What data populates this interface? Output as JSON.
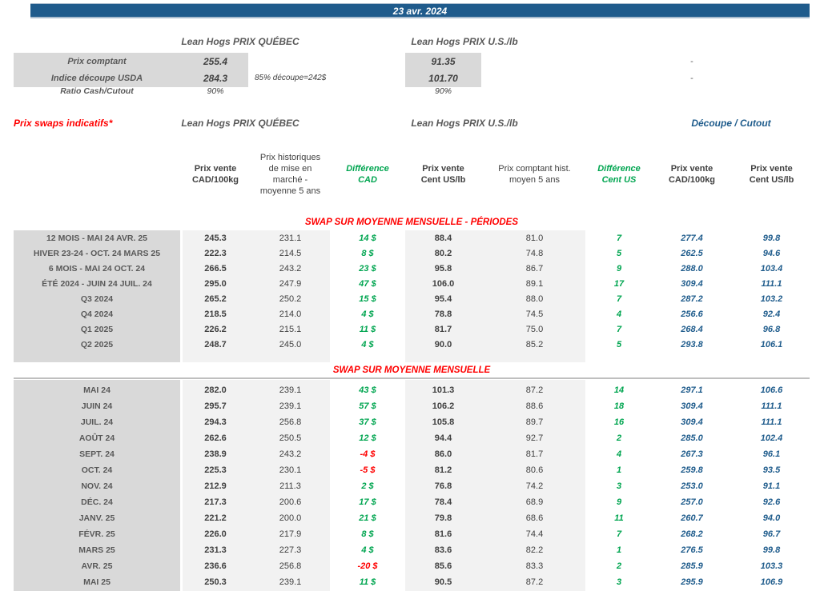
{
  "banner": {
    "date": "23 avr. 2024"
  },
  "colors": {
    "banner_blue": "#1F5B8C",
    "accent_red": "#FF0000",
    "accent_green": "#00A550",
    "cutout_blue": "#1F5C8C",
    "label_row_bg": "#D9D9D9",
    "value_col_bg": "#F2F2F2",
    "text_dark": "#404040",
    "text_gray": "#595959"
  },
  "spot": {
    "qc_header": "Lean Hogs PRIX QUÉBEC",
    "us_header": "Lean Hogs PRIX U.S./lb",
    "rows": [
      {
        "label": "Prix comptant",
        "qc": "255.4",
        "note": "",
        "us": "91.35",
        "right": "-"
      },
      {
        "label": "Indice découpe USDA",
        "qc": "284.3",
        "note": "85% découpe=242$",
        "us": "101.70",
        "right": "-"
      },
      {
        "label": "Ratio Cash/Cutout",
        "qc": "90%",
        "note": "",
        "us": "90%",
        "right": ""
      }
    ]
  },
  "swaps": {
    "title": "Prix swaps indicatifs*",
    "qc_header": "Lean Hogs PRIX QUÉBEC",
    "us_header": "Lean Hogs PRIX U.S./lb",
    "cutout_header": "Découpe / Cutout",
    "column_headers": [
      "Prix vente\nCAD/100kg",
      "Prix historiques\nde mise en\nmarché -\nmoyenne 5 ans",
      "Différence\nCAD",
      "Prix vente\nCent US/lb",
      "Prix comptant hist.\nmoyen 5 ans",
      "Différence\nCent US",
      "Prix vente\nCAD/100kg",
      "Prix vente\nCent US/lb"
    ],
    "sections": [
      {
        "title": "SWAP SUR MOYENNE MENSUELLE - PÉRIODES",
        "rows": [
          {
            "label": "12 MOIS - MAI 24 AVR. 25",
            "cells": [
              "245.3",
              "231.1",
              "14 $",
              "88.4",
              "81.0",
              "7",
              "277.4",
              "99.8"
            ]
          },
          {
            "label": "HIVER 23-24 -  OCT. 24 MARS 25",
            "cells": [
              "222.3",
              "214.5",
              "8 $",
              "80.2",
              "74.8",
              "5",
              "262.5",
              "94.6"
            ]
          },
          {
            "label": "6 MOIS -  MAI 24 OCT. 24",
            "cells": [
              "266.5",
              "243.2",
              "23 $",
              "95.8",
              "86.7",
              "9",
              "288.0",
              "103.4"
            ]
          },
          {
            "label": "ÉTÉ 2024 - JUIN 24 JUIL. 24",
            "cells": [
              "295.0",
              "247.9",
              "47 $",
              "106.0",
              "89.1",
              "17",
              "309.4",
              "111.1"
            ]
          },
          {
            "label": "Q3 2024",
            "cells": [
              "265.2",
              "250.2",
              "15 $",
              "95.4",
              "88.0",
              "7",
              "287.2",
              "103.2"
            ]
          },
          {
            "label": "Q4 2024",
            "cells": [
              "218.5",
              "214.0",
              "4 $",
              "78.8",
              "74.5",
              "4",
              "256.6",
              "92.4"
            ]
          },
          {
            "label": "Q1 2025",
            "cells": [
              "226.2",
              "215.1",
              "11 $",
              "81.7",
              "75.0",
              "7",
              "268.4",
              "96.8"
            ]
          },
          {
            "label": "Q2 2025",
            "cells": [
              "248.7",
              "245.0",
              "4 $",
              "90.0",
              "85.2",
              "5",
              "293.8",
              "106.1"
            ]
          }
        ]
      },
      {
        "title": "SWAP SUR MOYENNE MENSUELLE",
        "rows": [
          {
            "label": "MAI 24",
            "cells": [
              "282.0",
              "239.1",
              "43 $",
              "101.3",
              "87.2",
              "14",
              "297.1",
              "106.6"
            ]
          },
          {
            "label": "JUIN 24",
            "cells": [
              "295.7",
              "239.1",
              "57 $",
              "106.2",
              "88.6",
              "18",
              "309.4",
              "111.1"
            ]
          },
          {
            "label": "JUIL. 24",
            "cells": [
              "294.3",
              "256.8",
              "37 $",
              "105.8",
              "89.7",
              "16",
              "309.4",
              "111.1"
            ]
          },
          {
            "label": "AOÛT 24",
            "cells": [
              "262.6",
              "250.5",
              "12 $",
              "94.4",
              "92.7",
              "2",
              "285.0",
              "102.4"
            ]
          },
          {
            "label": "SEPT. 24",
            "cells": [
              "238.9",
              "243.2",
              "-4 $",
              "86.0",
              "81.7",
              "4",
              "267.3",
              "96.1"
            ]
          },
          {
            "label": "OCT. 24",
            "cells": [
              "225.3",
              "230.1",
              "-5 $",
              "81.2",
              "80.6",
              "1",
              "259.8",
              "93.5"
            ]
          },
          {
            "label": "NOV. 24",
            "cells": [
              "212.9",
              "211.3",
              "2 $",
              "76.8",
              "74.2",
              "3",
              "253.0",
              "91.1"
            ]
          },
          {
            "label": "DÉC. 24",
            "cells": [
              "217.3",
              "200.6",
              "17 $",
              "78.4",
              "68.9",
              "9",
              "257.0",
              "92.6"
            ]
          },
          {
            "label": "JANV. 25",
            "cells": [
              "221.2",
              "200.0",
              "21 $",
              "79.8",
              "68.6",
              "11",
              "260.7",
              "94.0"
            ]
          },
          {
            "label": "FÉVR. 25",
            "cells": [
              "226.0",
              "217.9",
              "8 $",
              "81.6",
              "74.4",
              "7",
              "268.2",
              "96.7"
            ]
          },
          {
            "label": "MARS 25",
            "cells": [
              "231.3",
              "227.3",
              "4 $",
              "83.6",
              "82.2",
              "1",
              "276.5",
              "99.8"
            ]
          },
          {
            "label": "AVR. 25",
            "cells": [
              "236.6",
              "256.8",
              "-20 $",
              "85.6",
              "83.3",
              "2",
              "285.9",
              "103.3"
            ]
          },
          {
            "label": "MAI 25",
            "cells": [
              "250.3",
              "239.1",
              "11 $",
              "90.5",
              "87.2",
              "3",
              "295.9",
              "106.9"
            ]
          }
        ]
      }
    ]
  }
}
